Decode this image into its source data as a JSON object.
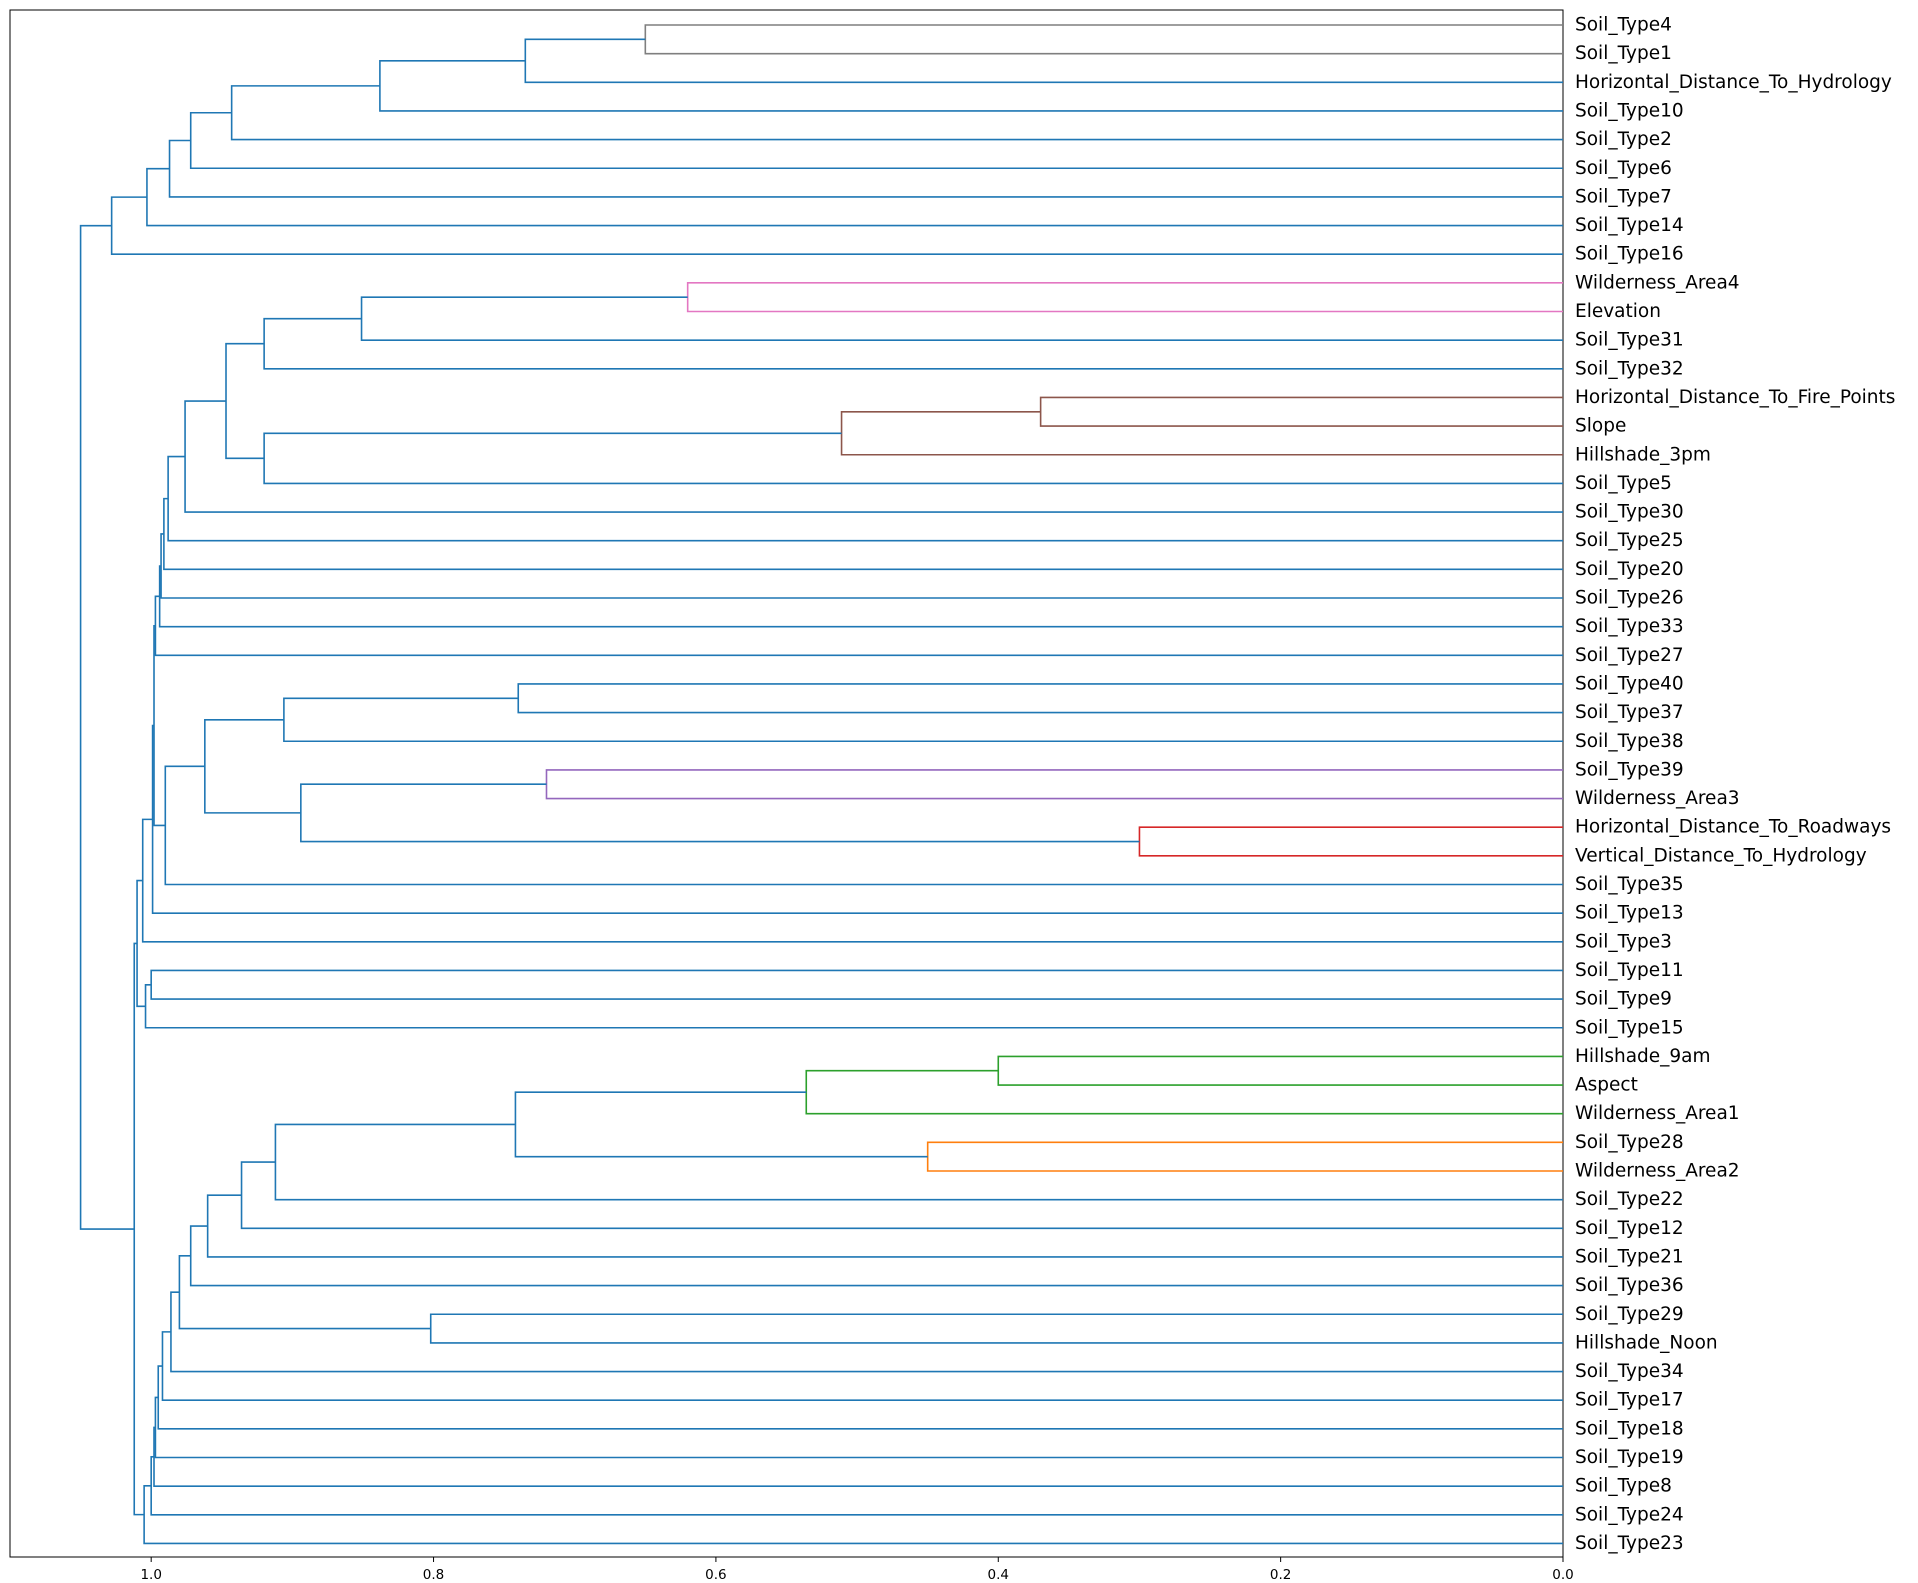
{
  "chart_data": {
    "type": "dendrogram",
    "orientation": "left",
    "xlim": [
      1.1,
      0.0
    ],
    "x_ticks": [
      1.0,
      0.8,
      0.6,
      0.4,
      0.2,
      0.0
    ],
    "x_tick_labels": [
      "1.0",
      "0.8",
      "0.6",
      "0.4",
      "0.2",
      "0.0"
    ],
    "colors": {
      "above_threshold": "#1f77b4",
      "gray": "#7f7f7f",
      "pink": "#e377c2",
      "brown": "#8c564b",
      "purple": "#9467bd",
      "red": "#d62728",
      "green": "#2ca02c",
      "orange": "#ff7f0e"
    },
    "leaves": [
      "Soil_Type4",
      "Soil_Type1",
      "Horizontal_Distance_To_Hydrology",
      "Soil_Type10",
      "Soil_Type2",
      "Soil_Type6",
      "Soil_Type7",
      "Soil_Type14",
      "Soil_Type16",
      "Wilderness_Area4",
      "Elevation",
      "Soil_Type31",
      "Soil_Type32",
      "Horizontal_Distance_To_Fire_Points",
      "Slope",
      "Hillshade_3pm",
      "Soil_Type5",
      "Soil_Type30",
      "Soil_Type25",
      "Soil_Type20",
      "Soil_Type26",
      "Soil_Type33",
      "Soil_Type27",
      "Soil_Type40",
      "Soil_Type37",
      "Soil_Type38",
      "Soil_Type39",
      "Wilderness_Area3",
      "Horizontal_Distance_To_Roadways",
      "Vertical_Distance_To_Hydrology",
      "Soil_Type35",
      "Soil_Type13",
      "Soil_Type3",
      "Soil_Type11",
      "Soil_Type9",
      "Soil_Type15",
      "Hillshade_9am",
      "Aspect",
      "Wilderness_Area1",
      "Soil_Type28",
      "Wilderness_Area2",
      "Soil_Type22",
      "Soil_Type12",
      "Soil_Type21",
      "Soil_Type36",
      "Soil_Type29",
      "Hillshade_Noon",
      "Soil_Type34",
      "Soil_Type17",
      "Soil_Type18",
      "Soil_Type19",
      "Soil_Type8",
      "Soil_Type24",
      "Soil_Type23"
    ],
    "merges": [
      {
        "a": "Soil_Type4",
        "b": "Soil_Type1",
        "height": 0.65,
        "color": "gray"
      },
      {
        "a": "m0",
        "b": "Horizontal_Distance_To_Hydrology",
        "height": 0.735,
        "color": "above_threshold"
      },
      {
        "a": "m1",
        "b": "Soil_Type10",
        "height": 0.838,
        "color": "above_threshold"
      },
      {
        "a": "m2",
        "b": "Soil_Type2",
        "height": 0.943,
        "color": "above_threshold"
      },
      {
        "a": "m3",
        "b": "Soil_Type6",
        "height": 0.972,
        "color": "above_threshold"
      },
      {
        "a": "m4",
        "b": "Soil_Type7",
        "height": 0.987,
        "color": "above_threshold"
      },
      {
        "a": "m5",
        "b": "Soil_Type14",
        "height": 1.003,
        "color": "above_threshold"
      },
      {
        "a": "m6",
        "b": "Soil_Type16",
        "height": 1.028,
        "color": "above_threshold"
      },
      {
        "a": "Wilderness_Area4",
        "b": "Elevation",
        "height": 0.62,
        "color": "pink"
      },
      {
        "a": "m8",
        "b": "Soil_Type31",
        "height": 0.851,
        "color": "above_threshold"
      },
      {
        "a": "m9",
        "b": "Soil_Type32",
        "height": 0.92,
        "color": "above_threshold"
      },
      {
        "a": "Horizontal_Distance_To_Fire_Points",
        "b": "Slope",
        "height": 0.37,
        "color": "brown"
      },
      {
        "a": "m11",
        "b": "Hillshade_3pm",
        "height": 0.511,
        "color": "brown"
      },
      {
        "a": "m12",
        "b": "Soil_Type5",
        "height": 0.92,
        "color": "above_threshold"
      },
      {
        "a": "m10",
        "b": "m13",
        "height": 0.947,
        "color": "above_threshold"
      },
      {
        "a": "m14",
        "b": "Soil_Type30",
        "height": 0.976,
        "color": "above_threshold"
      },
      {
        "a": "m15",
        "b": "Soil_Type25",
        "height": 0.988,
        "color": "above_threshold"
      },
      {
        "a": "m16",
        "b": "Soil_Type20",
        "height": 0.991,
        "color": "above_threshold"
      },
      {
        "a": "m17",
        "b": "Soil_Type26",
        "height": 0.993,
        "color": "above_threshold"
      },
      {
        "a": "m18",
        "b": "Soil_Type33",
        "height": 0.994,
        "color": "above_threshold"
      },
      {
        "a": "m19",
        "b": "Soil_Type27",
        "height": 0.997,
        "color": "above_threshold"
      },
      {
        "a": "Soil_Type40",
        "b": "Soil_Type37",
        "height": 0.74,
        "color": "above_threshold"
      },
      {
        "a": "m21",
        "b": "Soil_Type38",
        "height": 0.906,
        "color": "above_threshold"
      },
      {
        "a": "Soil_Type39",
        "b": "Wilderness_Area3",
        "height": 0.72,
        "color": "purple"
      },
      {
        "a": "Horizontal_Distance_To_Roadways",
        "b": "Vertical_Distance_To_Hydrology",
        "height": 0.3,
        "color": "red"
      },
      {
        "a": "m23",
        "b": "m24",
        "height": 0.894,
        "color": "above_threshold"
      },
      {
        "a": "m22",
        "b": "m25",
        "height": 0.962,
        "color": "above_threshold"
      },
      {
        "a": "m26",
        "b": "Soil_Type35",
        "height": 0.99,
        "color": "above_threshold"
      },
      {
        "a": "m20",
        "b": "m27",
        "height": 0.998,
        "color": "above_threshold"
      },
      {
        "a": "m28",
        "b": "Soil_Type13",
        "height": 0.999,
        "color": "above_threshold"
      },
      {
        "a": "m29",
        "b": "Soil_Type3",
        "height": 1.006,
        "color": "above_threshold"
      },
      {
        "a": "Soil_Type11",
        "b": "Soil_Type9",
        "height": 1.0,
        "color": "above_threshold"
      },
      {
        "a": "m31",
        "b": "Soil_Type15",
        "height": 1.004,
        "color": "above_threshold"
      },
      {
        "a": "m30",
        "b": "m32",
        "height": 1.01,
        "color": "above_threshold"
      },
      {
        "a": "Hillshade_9am",
        "b": "Aspect",
        "height": 0.4,
        "color": "green"
      },
      {
        "a": "m34",
        "b": "Wilderness_Area1",
        "height": 0.536,
        "color": "green"
      },
      {
        "a": "Soil_Type28",
        "b": "Wilderness_Area2",
        "height": 0.45,
        "color": "orange"
      },
      {
        "a": "m35",
        "b": "m36",
        "height": 0.742,
        "color": "above_threshold"
      },
      {
        "a": "m37",
        "b": "Soil_Type22",
        "height": 0.912,
        "color": "above_threshold"
      },
      {
        "a": "m38",
        "b": "Soil_Type12",
        "height": 0.936,
        "color": "above_threshold"
      },
      {
        "a": "m39",
        "b": "Soil_Type21",
        "height": 0.96,
        "color": "above_threshold"
      },
      {
        "a": "m40",
        "b": "Soil_Type36",
        "height": 0.972,
        "color": "above_threshold"
      },
      {
        "a": "Soil_Type29",
        "b": "Hillshade_Noon",
        "height": 0.802,
        "color": "above_threshold"
      },
      {
        "a": "m41",
        "b": "m42",
        "height": 0.98,
        "color": "above_threshold"
      },
      {
        "a": "m43",
        "b": "Soil_Type34",
        "height": 0.986,
        "color": "above_threshold"
      },
      {
        "a": "m44",
        "b": "Soil_Type17",
        "height": 0.992,
        "color": "above_threshold"
      },
      {
        "a": "m45",
        "b": "Soil_Type18",
        "height": 0.995,
        "color": "above_threshold"
      },
      {
        "a": "m46",
        "b": "Soil_Type19",
        "height": 0.997,
        "color": "above_threshold"
      },
      {
        "a": "m47",
        "b": "Soil_Type8",
        "height": 0.998,
        "color": "above_threshold"
      },
      {
        "a": "m48",
        "b": "Soil_Type24",
        "height": 1.0,
        "color": "above_threshold"
      },
      {
        "a": "m49",
        "b": "Soil_Type23",
        "height": 1.005,
        "color": "above_threshold"
      },
      {
        "a": "m33",
        "b": "m50",
        "height": 1.012,
        "color": "above_threshold"
      },
      {
        "a": "m7",
        "b": "m51",
        "height": 1.05,
        "color": "above_threshold"
      }
    ]
  }
}
